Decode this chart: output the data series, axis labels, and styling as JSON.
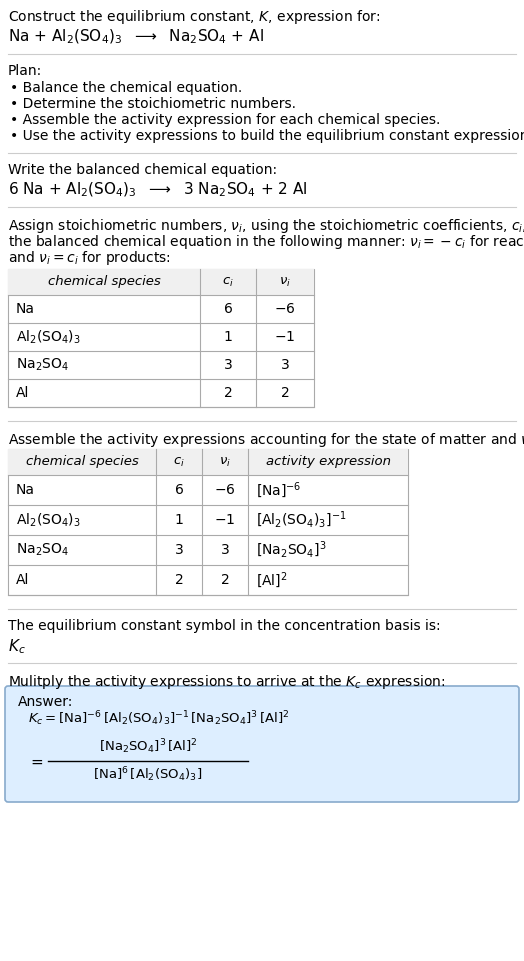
{
  "title_line1": "Construct the equilibrium constant, $K$, expression for:",
  "title_line2": "Na + Al$_2$(SO$_4$)$_3$  $\\longrightarrow$  Na$_2$SO$_4$ + Al",
  "plan_header": "Plan:",
  "plan_bullets": [
    "• Balance the chemical equation.",
    "• Determine the stoichiometric numbers.",
    "• Assemble the activity expression for each chemical species.",
    "• Use the activity expressions to build the equilibrium constant expression."
  ],
  "balanced_header": "Write the balanced chemical equation:",
  "balanced_eq": "6 Na + Al$_2$(SO$_4$)$_3$  $\\longrightarrow$  3 Na$_2$SO$_4$ + 2 Al",
  "stoich_intro_lines": [
    "Assign stoichiometric numbers, $\\nu_i$, using the stoichiometric coefficients, $c_i$, from",
    "the balanced chemical equation in the following manner: $\\nu_i = -c_i$ for reactants",
    "and $\\nu_i = c_i$ for products:"
  ],
  "table1_headers": [
    "chemical species",
    "$c_i$",
    "$\\nu_i$"
  ],
  "table1_rows": [
    [
      "Na",
      "6",
      "$-6$"
    ],
    [
      "Al$_2$(SO$_4$)$_3$",
      "1",
      "$-1$"
    ],
    [
      "Na$_2$SO$_4$",
      "3",
      "3"
    ],
    [
      "Al",
      "2",
      "2"
    ]
  ],
  "activity_intro": "Assemble the activity expressions accounting for the state of matter and $\\nu_i$:",
  "table2_headers": [
    "chemical species",
    "$c_i$",
    "$\\nu_i$",
    "activity expression"
  ],
  "table2_rows": [
    [
      "Na",
      "6",
      "$-6$",
      "[Na]$^{-6}$"
    ],
    [
      "Al$_2$(SO$_4$)$_3$",
      "1",
      "$-1$",
      "[Al$_2$(SO$_4$)$_3$]$^{-1}$"
    ],
    [
      "Na$_2$SO$_4$",
      "3",
      "3",
      "[Na$_2$SO$_4$]$^{3}$"
    ],
    [
      "Al",
      "2",
      "2",
      "[Al]$^{2}$"
    ]
  ],
  "kc_intro": "The equilibrium constant symbol in the concentration basis is:",
  "kc_symbol": "$K_c$",
  "multiply_intro": "Mulitply the activity expressions to arrive at the $K_c$ expression:",
  "answer_label": "Answer:",
  "answer_line1": "$K_c = \\mathrm{[Na]^{-6}\\,[Al_2(SO_4)_3]^{-1}\\,[Na_2SO_4]^{3}\\,[Al]^{2}}$",
  "answer_eq_sign": "$=$",
  "answer_numer": "$\\mathrm{[Na_2SO_4]^3\\,[Al]^2}$",
  "answer_denom": "$\\mathrm{[Na]^6\\,[Al_2(SO_4)_3]}$",
  "bg_color": "#ffffff",
  "answer_box_color": "#ddeeff",
  "answer_box_border": "#88aacc",
  "text_color": "#000000",
  "table_line_color": "#aaaaaa"
}
